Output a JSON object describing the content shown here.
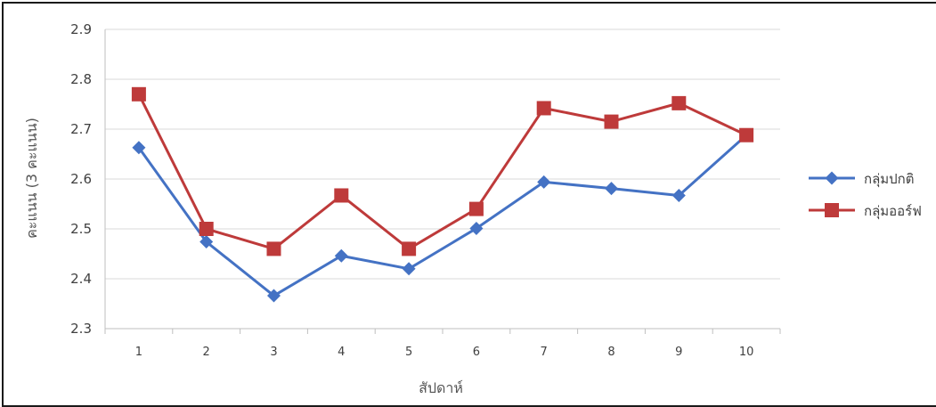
{
  "chart_data": {
    "type": "line",
    "title": "",
    "xlabel": "สัปดาห์",
    "ylabel": "คะแนน (3 คะแนน)",
    "x": [
      1,
      2,
      3,
      4,
      5,
      6,
      7,
      8,
      9,
      10
    ],
    "categories": [
      "1",
      "2",
      "3",
      "4",
      "5",
      "6",
      "7",
      "8",
      "9",
      "10"
    ],
    "ylim": [
      2.3,
      2.9
    ],
    "yticks": [
      "2.3",
      "2.4",
      "2.5",
      "2.6",
      "2.7",
      "2.8",
      "2.9"
    ],
    "grid": true,
    "legend_position": "right",
    "series": [
      {
        "name": "กลุ่มปกติ",
        "color": "#4472C4",
        "marker": "diamond",
        "values": [
          2.663,
          2.474,
          2.366,
          2.446,
          2.42,
          2.501,
          2.594,
          2.581,
          2.567,
          2.688
        ]
      },
      {
        "name": "กลุ่มออร์ฟ",
        "color": "#BE3A3A",
        "marker": "square",
        "values": [
          2.77,
          2.5,
          2.46,
          2.567,
          2.46,
          2.54,
          2.742,
          2.715,
          2.752,
          2.688
        ]
      }
    ]
  }
}
